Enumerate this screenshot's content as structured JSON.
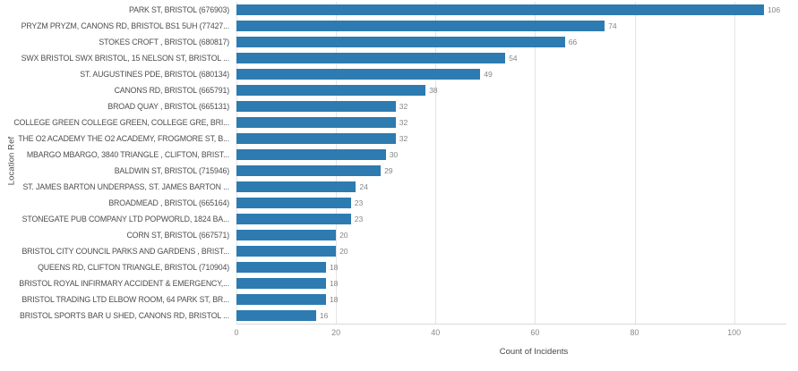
{
  "chart_data": {
    "type": "bar",
    "orientation": "horizontal",
    "title": "",
    "xlabel": "Count of Incidents",
    "ylabel": "Location Ref",
    "xticks": [
      0,
      20,
      40,
      60,
      80,
      100
    ],
    "xlim": [
      0,
      110.5
    ],
    "grid": "vertical",
    "legend": "none",
    "value_labels_shown": true,
    "bar_color": "#2d7bb0",
    "categories": [
      "PARK ST, BRISTOL (676903)",
      "PRYZM PRYZM, CANONS RD, BRISTOL BS1 5UH (77427...",
      "STOKES CROFT , BRISTOL (680817)",
      "SWX BRISTOL SWX BRISTOL, 15 NELSON ST, BRISTOL ...",
      "ST. AUGUSTINES PDE, BRISTOL (680134)",
      "CANONS RD, BRISTOL (665791)",
      "BROAD QUAY , BRISTOL (665131)",
      "COLLEGE GREEN COLLEGE GREEN, COLLEGE GRE, BRI...",
      "THE O2 ACADEMY THE O2 ACADEMY, FROGMORE ST, B...",
      "MBARGO MBARGO, 3840 TRIANGLE , CLIFTON, BRIST...",
      "BALDWIN ST, BRISTOL (715946)",
      "ST. JAMES BARTON UNDERPASS, ST. JAMES BARTON ...",
      "BROADMEAD , BRISTOL (665164)",
      "STONEGATE PUB COMPANY LTD POPWORLD, 1824 BA...",
      "CORN ST, BRISTOL (667571)",
      "BRISTOL CITY COUNCIL PARKS AND GARDENS , BRIST...",
      "QUEENS RD, CLIFTON TRIANGLE, BRISTOL (710904)",
      "BRISTOL ROYAL INFIRMARY ACCIDENT & EMERGENCY,...",
      "BRISTOL TRADING LTD ELBOW ROOM, 64 PARK ST, BR...",
      "BRISTOL SPORTS BAR U SHED, CANONS RD, BRISTOL ..."
    ],
    "values": [
      106,
      74,
      66,
      54,
      49,
      38,
      32,
      32,
      32,
      30,
      29,
      24,
      23,
      23,
      20,
      20,
      18,
      18,
      18,
      16
    ]
  },
  "colors": {
    "bar": "#2d7bb0",
    "gridline": "#e4e4e4",
    "axis_line": "#d9d9d9",
    "category_text": "#4d4d4d",
    "muted_text": "#8a8a8a"
  }
}
